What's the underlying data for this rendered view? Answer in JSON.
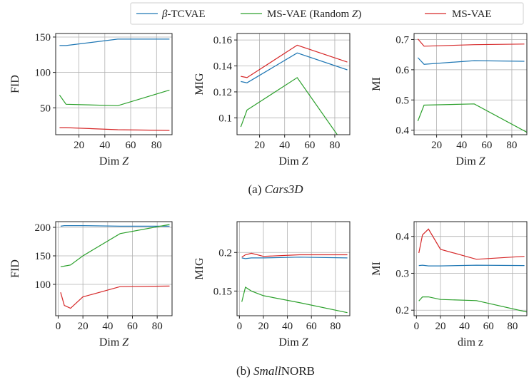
{
  "legend": [
    {
      "label": "β-TCVAE",
      "color": "#1f77b4"
    },
    {
      "label": "MS-VAE (Random Z)",
      "color": "#2ca02c"
    },
    {
      "label": "MS-VAE",
      "color": "#d62728"
    }
  ],
  "captions": {
    "top": {
      "prefix": "(a) ",
      "name": "Cars3D"
    },
    "bottom": {
      "prefix": "(b) ",
      "name_italic": "Small",
      "name_rest": "NORB"
    }
  },
  "chart_data": [
    {
      "type": "line",
      "dataset": "Cars3D",
      "ylabel": "FID",
      "xlabel": "Dim Z",
      "xlim": [
        2,
        92
      ],
      "ylim": [
        12,
        155
      ],
      "xticks": [
        20,
        40,
        60,
        80
      ],
      "yticks": [
        50,
        100,
        150
      ],
      "grid": true,
      "series": [
        {
          "name": "β-TCVAE",
          "x": [
            5,
            10,
            50,
            90
          ],
          "y": [
            138,
            138,
            147,
            147
          ]
        },
        {
          "name": "MS-VAE (Random Z)",
          "x": [
            5,
            10,
            50,
            90
          ],
          "y": [
            68,
            55,
            53,
            75
          ]
        },
        {
          "name": "MS-VAE",
          "x": [
            5,
            10,
            50,
            90
          ],
          "y": [
            22,
            22,
            19,
            18
          ]
        }
      ]
    },
    {
      "type": "line",
      "dataset": "Cars3D",
      "ylabel": "MIG",
      "xlabel": "Dim Z",
      "xlim": [
        2,
        92
      ],
      "ylim": [
        0.087,
        0.165
      ],
      "xticks": [
        20,
        40,
        60,
        80
      ],
      "yticks": [
        0.1,
        0.12,
        0.14,
        0.16
      ],
      "ytick_labels": [
        "0.1",
        "0.12",
        "0.14",
        "0.16"
      ],
      "grid": true,
      "series": [
        {
          "name": "β-TCVAE",
          "x": [
            5,
            10,
            50,
            90
          ],
          "y": [
            0.128,
            0.127,
            0.15,
            0.137
          ]
        },
        {
          "name": "MS-VAE (Random Z)",
          "x": [
            5,
            10,
            50,
            82
          ],
          "y": [
            0.093,
            0.106,
            0.131,
            0.087
          ]
        },
        {
          "name": "MS-VAE",
          "x": [
            5,
            10,
            50,
            90
          ],
          "y": [
            0.132,
            0.131,
            0.156,
            0.143
          ]
        }
      ]
    },
    {
      "type": "line",
      "dataset": "Cars3D",
      "ylabel": "MI",
      "xlabel": "Dim Z",
      "xlim": [
        2,
        92
      ],
      "ylim": [
        0.385,
        0.72
      ],
      "xticks": [
        20,
        40,
        60,
        80
      ],
      "yticks": [
        0.4,
        0.5,
        0.6,
        0.7
      ],
      "grid": true,
      "series": [
        {
          "name": "β-TCVAE",
          "x": [
            5,
            10,
            50,
            90
          ],
          "y": [
            0.64,
            0.618,
            0.63,
            0.628
          ]
        },
        {
          "name": "MS-VAE (Random Z)",
          "x": [
            5,
            10,
            50,
            92
          ],
          "y": [
            0.43,
            0.483,
            0.487,
            0.393
          ]
        },
        {
          "name": "MS-VAE",
          "x": [
            5,
            10,
            50,
            90
          ],
          "y": [
            0.702,
            0.678,
            0.683,
            0.685
          ]
        }
      ]
    },
    {
      "type": "line",
      "dataset": "SmallNORB",
      "ylabel": "FID",
      "xlabel": "Dim Z",
      "xlim": [
        -2,
        92
      ],
      "ylim": [
        45,
        210
      ],
      "xticks": [
        0,
        20,
        40,
        60,
        80
      ],
      "yticks": [
        100,
        150,
        200
      ],
      "grid": true,
      "series": [
        {
          "name": "β-TCVAE",
          "x": [
            2,
            5,
            10,
            20,
            50,
            90
          ],
          "y": [
            202,
            203,
            203,
            203,
            202,
            202
          ]
        },
        {
          "name": "MS-VAE (Random Z)",
          "x": [
            2,
            5,
            10,
            20,
            50,
            90
          ],
          "y": [
            131,
            132,
            134,
            150,
            189,
            205
          ]
        },
        {
          "name": "MS-VAE",
          "x": [
            2,
            5,
            10,
            20,
            50,
            90
          ],
          "y": [
            86,
            63,
            58,
            78,
            96,
            97
          ]
        }
      ]
    },
    {
      "type": "line",
      "dataset": "SmallNORB",
      "ylabel": "MIG",
      "xlabel": "Dim Z",
      "xlim": [
        -2,
        92
      ],
      "ylim": [
        0.118,
        0.24
      ],
      "xticks": [
        0,
        20,
        40,
        60,
        80
      ],
      "yticks": [
        0.15,
        0.2
      ],
      "ytick_labels": [
        "0.15",
        "0.2"
      ],
      "grid": true,
      "series": [
        {
          "name": "β-TCVAE",
          "x": [
            2,
            5,
            10,
            20,
            50,
            90
          ],
          "y": [
            0.193,
            0.192,
            0.193,
            0.193,
            0.194,
            0.193
          ]
        },
        {
          "name": "MS-VAE (Random Z)",
          "x": [
            2,
            5,
            10,
            20,
            50,
            90
          ],
          "y": [
            0.136,
            0.155,
            0.15,
            0.144,
            0.135,
            0.122
          ]
        },
        {
          "name": "MS-VAE",
          "x": [
            2,
            5,
            10,
            20,
            50,
            90
          ],
          "y": [
            0.194,
            0.197,
            0.199,
            0.195,
            0.197,
            0.197
          ]
        }
      ]
    },
    {
      "type": "line",
      "dataset": "SmallNORB",
      "ylabel": "MI",
      "xlabel": "dim z",
      "xlim": [
        -2,
        92
      ],
      "ylim": [
        0.185,
        0.44
      ],
      "xticks": [
        0,
        20,
        40,
        60,
        80
      ],
      "yticks": [
        0.2,
        0.3,
        0.4
      ],
      "grid": true,
      "series": [
        {
          "name": "β-TCVAE",
          "x": [
            2,
            5,
            10,
            20,
            50,
            90
          ],
          "y": [
            0.321,
            0.322,
            0.32,
            0.32,
            0.322,
            0.321
          ]
        },
        {
          "name": "MS-VAE (Random Z)",
          "x": [
            2,
            5,
            10,
            20,
            50,
            92
          ],
          "y": [
            0.225,
            0.236,
            0.236,
            0.229,
            0.226,
            0.195
          ]
        },
        {
          "name": "MS-VAE",
          "x": [
            2,
            5,
            10,
            20,
            50,
            90
          ],
          "y": [
            0.355,
            0.404,
            0.42,
            0.365,
            0.338,
            0.346
          ]
        }
      ]
    }
  ]
}
